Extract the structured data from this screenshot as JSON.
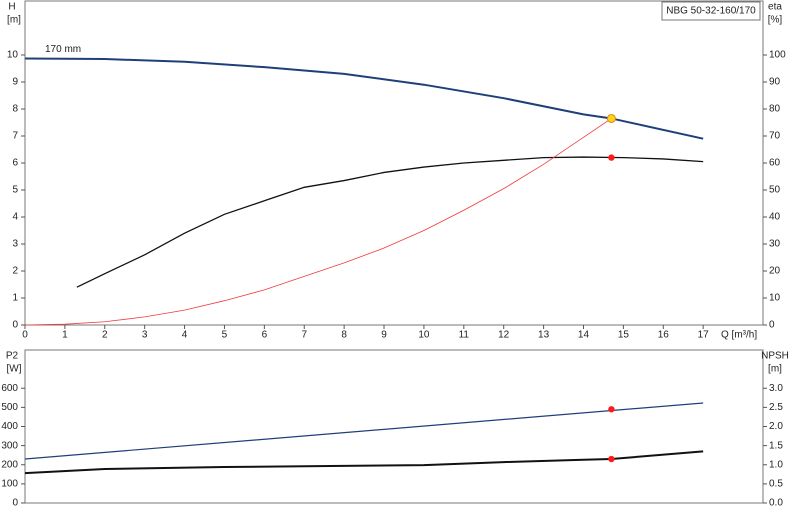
{
  "chart_data": [
    {
      "type": "line",
      "title": "NBG 50-32-160/170",
      "ylabel": "H",
      "yunit": "[m]",
      "y2label": "eta",
      "y2unit": "[%]",
      "xlabel": "Q [m³/h]",
      "xlim": [
        0,
        18.5
      ],
      "xticks": [
        0,
        1,
        2,
        3,
        4,
        5,
        6,
        7,
        8,
        9,
        10,
        11,
        12,
        13,
        14,
        15,
        16,
        17
      ],
      "ylim": [
        0,
        12
      ],
      "yticks": [
        0,
        1,
        2,
        3,
        4,
        5,
        6,
        7,
        8,
        9,
        10
      ],
      "y2lim": [
        0,
        120
      ],
      "y2ticks": [
        0,
        10,
        20,
        30,
        40,
        50,
        60,
        70,
        80,
        90,
        100
      ],
      "series": [
        {
          "name": "170 mm",
          "color": "#1f3f7a",
          "width": 2,
          "axis": "y",
          "x": [
            0,
            2,
            4,
            6,
            8,
            10,
            12,
            14,
            14.7,
            17
          ],
          "values": [
            9.87,
            9.85,
            9.75,
            9.55,
            9.3,
            8.9,
            8.4,
            7.8,
            7.65,
            6.9
          ]
        },
        {
          "color": "#111111",
          "width": 1.3,
          "axis": "y2",
          "x": [
            1.3,
            2,
            3,
            4,
            5,
            6,
            7,
            8,
            9,
            10,
            11,
            12,
            13,
            14,
            15,
            16,
            17
          ],
          "values": [
            14,
            19,
            26,
            34,
            41,
            46,
            51,
            53.5,
            56.5,
            58.5,
            60,
            61,
            62,
            62.2,
            62,
            61.5,
            60.5
          ]
        },
        {
          "color": "#f03c3c",
          "width": 0.8,
          "axis": "y",
          "x": [
            0,
            1,
            2,
            3,
            4,
            5,
            6,
            7,
            8,
            9,
            10,
            11,
            12,
            13,
            14,
            14.7
          ],
          "values": [
            0,
            0.03,
            0.12,
            0.3,
            0.55,
            0.9,
            1.3,
            1.8,
            2.3,
            2.85,
            3.5,
            4.25,
            5.05,
            5.95,
            6.95,
            7.65
          ]
        }
      ],
      "points": [
        {
          "x": 14.7,
          "y": 7.65,
          "axis": "y",
          "color": "#ffd21f"
        },
        {
          "x": 14.7,
          "y": 62,
          "axis": "y2",
          "color": "#ff1a1a"
        }
      ]
    },
    {
      "type": "line",
      "ylabel": "P2",
      "yunit": "[W]",
      "y2label": "NPSH",
      "y2unit": "[m]",
      "xlim": [
        0,
        18.5
      ],
      "ylim": [
        0,
        800
      ],
      "yticks": [
        0,
        100,
        200,
        300,
        400,
        500,
        600
      ],
      "y2lim": [
        0,
        4
      ],
      "y2ticks": [
        {
          "value": 0,
          "label": "0.0"
        },
        0.5,
        {
          "value": 1,
          "label": "1.0"
        },
        1.5,
        {
          "value": 2,
          "label": "2.0"
        },
        2.5,
        {
          "value": 3,
          "label": "3.0"
        }
      ],
      "series": [
        {
          "color": "#1f3f7a",
          "width": 1.2,
          "axis": "y",
          "x": [
            0,
            17
          ],
          "values": [
            230,
            523
          ]
        },
        {
          "color": "#111111",
          "width": 2,
          "axis": "y2",
          "x": [
            0,
            2,
            5,
            10,
            12,
            14,
            14.7,
            17
          ],
          "values": [
            0.78,
            0.89,
            0.94,
            0.99,
            1.07,
            1.13,
            1.15,
            1.35
          ]
        }
      ],
      "points": [
        {
          "x": 14.7,
          "y": 490,
          "axis": "y",
          "color": "#ff1a1a"
        },
        {
          "x": 14.7,
          "y": 1.15,
          "axis": "y2",
          "color": "#ff1a1a"
        }
      ]
    }
  ]
}
